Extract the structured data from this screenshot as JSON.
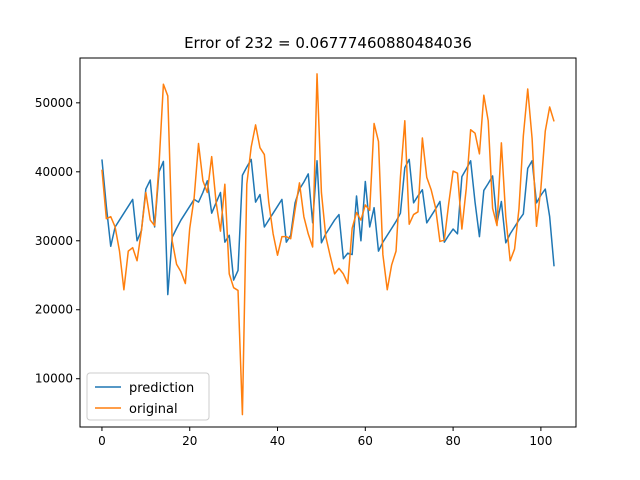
{
  "chart_data": {
    "type": "line",
    "title": "Error of 232 = 0.06777460880484036",
    "xlabel": "",
    "ylabel": "",
    "xlim": [
      -5,
      108
    ],
    "ylim": [
      3000,
      56500
    ],
    "xticks": [
      0,
      20,
      40,
      60,
      80,
      100
    ],
    "yticks": [
      10000,
      20000,
      30000,
      40000,
      50000
    ],
    "grid": false,
    "legend": "bottom-left",
    "series": [
      {
        "name": "prediction",
        "color": "#1f77b4",
        "x": [
          0,
          1,
          2,
          3,
          4,
          5,
          6,
          7,
          8,
          9,
          10,
          11,
          12,
          13,
          14,
          15,
          16,
          17,
          18,
          19,
          20,
          21,
          22,
          23,
          24,
          25,
          26,
          27,
          28,
          29,
          30,
          31,
          32,
          33,
          34,
          35,
          36,
          37,
          38,
          39,
          40,
          41,
          42,
          43,
          44,
          45,
          46,
          47,
          48,
          49,
          50,
          51,
          52,
          53,
          54,
          55,
          56,
          57,
          58,
          59,
          60,
          61,
          62,
          63,
          64,
          65,
          66,
          67,
          68,
          69,
          70,
          71,
          72,
          73,
          74,
          75,
          76,
          77,
          78,
          79,
          80,
          81,
          82,
          83,
          84,
          85,
          86,
          87,
          88,
          89,
          90,
          91,
          92,
          93,
          94,
          95,
          96,
          97,
          98,
          99,
          100,
          101,
          102,
          103
        ],
        "values": [
          41800,
          35000,
          29200,
          32000,
          33000,
          34000,
          35000,
          36000,
          30000,
          31500,
          37500,
          38800,
          32000,
          40000,
          41500,
          22200,
          30500,
          31800,
          33000,
          34000,
          35000,
          36000,
          35600,
          37000,
          38700,
          34000,
          35500,
          37000,
          29800,
          30800,
          24300,
          25700,
          39500,
          40700,
          41800,
          35600,
          36700,
          32000,
          33000,
          34000,
          35000,
          36000,
          29800,
          30800,
          35500,
          37500,
          38500,
          39700,
          32600,
          41600,
          29700,
          31000,
          32000,
          33000,
          33800,
          27400,
          28200,
          28000,
          36500,
          30000,
          38600,
          32000,
          34800,
          28500,
          29800,
          30800,
          31800,
          32800,
          34000,
          40600,
          41800,
          35500,
          36500,
          37400,
          32600,
          33600,
          34600,
          35700,
          29800,
          30800,
          31700,
          31000,
          39300,
          40400,
          41600,
          35600,
          30600,
          37300,
          38300,
          39400,
          32600,
          35700,
          29700,
          31000,
          32000,
          33000,
          33900,
          40500,
          41600,
          35500,
          36600,
          37500,
          33500,
          26300
        ]
      },
      {
        "name": "original",
        "color": "#ff7f0e",
        "x": [
          0,
          1,
          2,
          3,
          4,
          5,
          6,
          7,
          8,
          9,
          10,
          11,
          12,
          13,
          14,
          15,
          16,
          17,
          18,
          19,
          20,
          21,
          22,
          23,
          24,
          25,
          26,
          27,
          28,
          29,
          30,
          31,
          32,
          33,
          34,
          35,
          36,
          37,
          38,
          39,
          40,
          41,
          42,
          43,
          44,
          45,
          46,
          47,
          48,
          49,
          50,
          51,
          52,
          53,
          54,
          55,
          56,
          57,
          58,
          59,
          60,
          61,
          62,
          63,
          64,
          65,
          66,
          67,
          68,
          69,
          70,
          71,
          72,
          73,
          74,
          75,
          76,
          77,
          78,
          79,
          80,
          81,
          82,
          83,
          84,
          85,
          86,
          87,
          88,
          89,
          90,
          91,
          92,
          93,
          94,
          95,
          96,
          97,
          98,
          99,
          100,
          101,
          102,
          103
        ],
        "values": [
          40300,
          33200,
          33500,
          32000,
          28500,
          22900,
          28500,
          29000,
          27100,
          31500,
          37000,
          33000,
          32200,
          41000,
          52700,
          51000,
          30000,
          26600,
          25500,
          23800,
          31800,
          36200,
          44100,
          38700,
          37000,
          42200,
          35600,
          31400,
          38200,
          25200,
          23200,
          22800,
          4800,
          38200,
          43600,
          46800,
          43500,
          42500,
          35600,
          31000,
          27900,
          30600,
          30600,
          30300,
          34500,
          38400,
          33500,
          31000,
          29100,
          54200,
          37000,
          30600,
          27800,
          25200,
          26000,
          25200,
          23800,
          31800,
          34100,
          33000,
          35200,
          34400,
          47000,
          44400,
          28000,
          22900,
          26500,
          28500,
          39200,
          47400,
          32400,
          33800,
          34200,
          44900,
          39200,
          37400,
          34800,
          29900,
          30100,
          35400,
          40100,
          39800,
          31700,
          37600,
          46100,
          45600,
          42600,
          51100,
          47400,
          34700,
          32200,
          44200,
          33500,
          27100,
          28800,
          34600,
          45200,
          52000,
          44800,
          32100,
          37600,
          45900,
          49400,
          47300
        ]
      }
    ]
  }
}
